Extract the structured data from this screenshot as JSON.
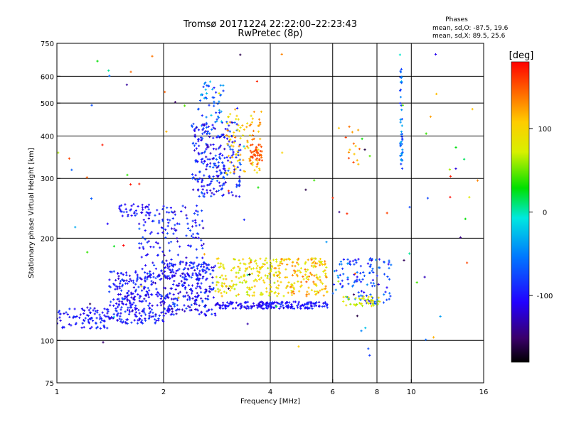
{
  "chart_data": {
    "type": "scatter",
    "title": "Tromsø 20171224 22:22:00–22:23:43",
    "subtitle": "RwPretec (8p)",
    "xlabel": "Frequency [MHz]",
    "ylabel": "Stationary phase Virtual Height [km]",
    "x_scale": "log",
    "y_scale": "log",
    "xlim": [
      1,
      16
    ],
    "ylim": [
      75,
      750
    ],
    "x_ticks": [
      "1",
      "2",
      "4",
      "6",
      "8",
      "10",
      "16"
    ],
    "x_tick_values": [
      1,
      2,
      4,
      6,
      8,
      10,
      16
    ],
    "y_ticks": [
      "750",
      "600",
      "500",
      "400",
      "300",
      "200",
      "100",
      "75"
    ],
    "y_tick_values": [
      750,
      600,
      500,
      400,
      300,
      200,
      100,
      75
    ],
    "grid": true,
    "legend": {
      "title": "Phases",
      "line_o": "mean, sd,O: -87.5, 19.6",
      "line_x": "mean, sd,X:  89.5, 25.6"
    },
    "colorbar": {
      "unit": "[deg]",
      "range": [
        -180,
        180
      ],
      "ticks": [
        "100",
        "0",
        "-100"
      ],
      "tick_values": [
        100,
        0,
        -100
      ]
    },
    "colors": {
      "grid": "#000000",
      "background": "#ffffff"
    },
    "clusters": [
      {
        "x": [
          1.0,
          1.4
        ],
        "y": [
          108,
          125
        ],
        "phase": [
          -120,
          -80
        ],
        "n": 90
      },
      {
        "x": [
          1.4,
          2.0
        ],
        "y": [
          112,
          160
        ],
        "phase": [
          -125,
          -75
        ],
        "n": 260
      },
      {
        "x": [
          2.0,
          2.8
        ],
        "y": [
          118,
          170
        ],
        "phase": [
          -130,
          -70
        ],
        "n": 260
      },
      {
        "x": [
          1.7,
          2.6
        ],
        "y": [
          150,
          250
        ],
        "phase": [
          -130,
          -70
        ],
        "n": 170
      },
      {
        "x": [
          1.5,
          1.85
        ],
        "y": [
          232,
          252
        ],
        "phase": [
          -120,
          -80
        ],
        "n": 35
      },
      {
        "x": [
          2.4,
          3.3
        ],
        "y": [
          265,
          440
        ],
        "phase": [
          -130,
          -60
        ],
        "n": 260
      },
      {
        "x": [
          2.5,
          2.95
        ],
        "y": [
          440,
          580
        ],
        "phase": [
          -110,
          -20
        ],
        "n": 45
      },
      {
        "x": [
          3.0,
          3.8
        ],
        "y": [
          310,
          480
        ],
        "phase": [
          80,
          140
        ],
        "n": 90
      },
      {
        "x": [
          3.5,
          3.8
        ],
        "y": [
          330,
          380
        ],
        "phase": [
          140,
          165
        ],
        "n": 40
      },
      {
        "x": [
          2.8,
          4.0
        ],
        "y": [
          124,
          130
        ],
        "phase": [
          -120,
          -90
        ],
        "n": 90
      },
      {
        "x": [
          3.8,
          5.8
        ],
        "y": [
          124,
          130
        ],
        "phase": [
          -120,
          -80
        ],
        "n": 110
      },
      {
        "x": [
          2.8,
          4.2
        ],
        "y": [
          135,
          175
        ],
        "phase": [
          60,
          120
        ],
        "n": 160
      },
      {
        "x": [
          4.1,
          5.8
        ],
        "y": [
          135,
          175
        ],
        "phase": [
          70,
          140
        ],
        "n": 160
      },
      {
        "x": [
          6.0,
          8.8
        ],
        "y": [
          128,
          175
        ],
        "phase": [
          -110,
          -40
        ],
        "n": 110
      },
      {
        "x": [
          6.4,
          8.2
        ],
        "y": [
          126,
          135
        ],
        "phase": [
          50,
          110
        ],
        "n": 40
      },
      {
        "x": [
          9.3,
          9.45
        ],
        "y": [
          310,
          640
        ],
        "phase": [
          -90,
          -30
        ],
        "n": 45
      },
      {
        "x": [
          6.5,
          7.5
        ],
        "y": [
          330,
          430
        ],
        "phase": [
          100,
          160
        ],
        "n": 14
      },
      {
        "x": [
          1.0,
          16.0
        ],
        "y": [
          90,
          700
        ],
        "phase": [
          -180,
          180
        ],
        "n": 110
      }
    ]
  }
}
